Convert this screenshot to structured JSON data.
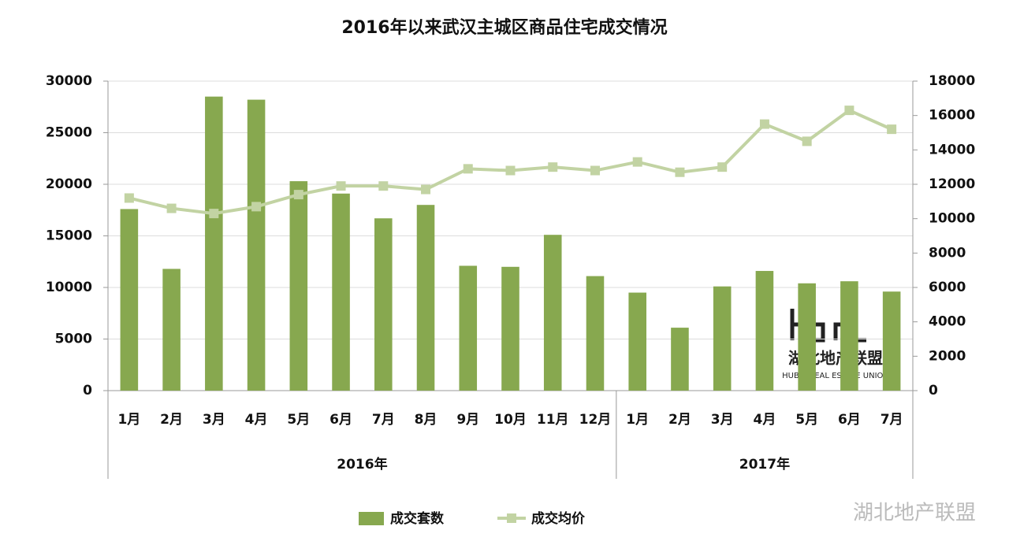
{
  "chart_data": {
    "type": "bar",
    "title": "2016年以来武汉主城区商品住宅成交情况",
    "categories": [
      "1月",
      "2月",
      "3月",
      "4月",
      "5月",
      "6月",
      "7月",
      "8月",
      "9月",
      "10月",
      "11月",
      "12月",
      "1月",
      "2月",
      "3月",
      "4月",
      "5月",
      "6月",
      "7月"
    ],
    "category_groups": [
      "2016年",
      "2016年",
      "2016年",
      "2016年",
      "2016年",
      "2016年",
      "2016年",
      "2016年",
      "2016年",
      "2016年",
      "2016年",
      "2016年",
      "2017年",
      "2017年",
      "2017年",
      "2017年",
      "2017年",
      "2017年",
      "2017年"
    ],
    "series": [
      {
        "name": "成交套数",
        "type": "bar",
        "color": "#87a84f",
        "values": [
          17600,
          11800,
          28500,
          28200,
          20300,
          19100,
          16700,
          18000,
          12100,
          12000,
          15100,
          11100,
          9500,
          6100,
          10100,
          11600,
          10400,
          10600,
          9600
        ]
      },
      {
        "name": "成交均价",
        "type": "line",
        "axis": "y2",
        "color": "#c2d3a3",
        "values": [
          11200,
          10600,
          10300,
          10700,
          11400,
          11900,
          11900,
          11700,
          12900,
          12800,
          13000,
          12800,
          13300,
          12700,
          13000,
          15500,
          14500,
          16300,
          15200
        ]
      }
    ],
    "ylim": [
      0,
      30000
    ],
    "yticks": [
      0,
      5000,
      10000,
      15000,
      20000,
      25000,
      30000
    ],
    "y2lim": [
      0,
      18000
    ],
    "y2ticks": [
      0,
      2000,
      4000,
      6000,
      8000,
      10000,
      12000,
      14000,
      16000,
      18000
    ],
    "grid": true,
    "legend": "bottom",
    "watermark": {
      "logo_text": "湖北地产联盟",
      "logo_subtext": "HUBEI REAL ESTATE UNION",
      "source": "湖北地产联盟"
    }
  }
}
